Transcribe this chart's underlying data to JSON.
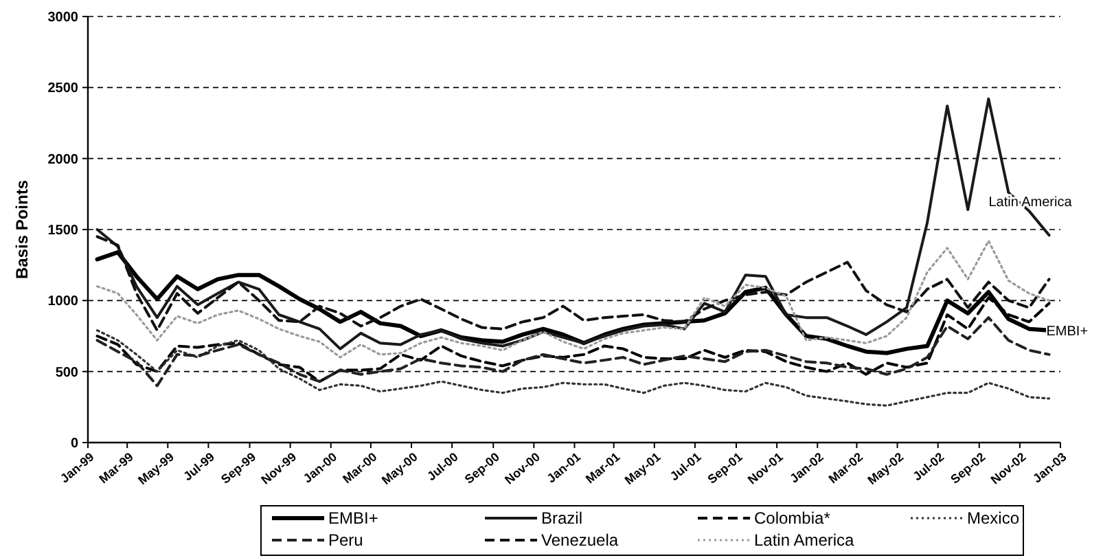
{
  "chart_data": {
    "type": "line",
    "ylabel": "Basis Points",
    "x": [
      "1999-01-15",
      "1999-02-15",
      "1999-03-15",
      "1999-04-15",
      "1999-05-15",
      "1999-06-15",
      "1999-07-15",
      "1999-08-15",
      "1999-09-15",
      "1999-10-15",
      "1999-11-15",
      "1999-12-15",
      "2000-01-15",
      "2000-02-15",
      "2000-03-15",
      "2000-04-15",
      "2000-05-15",
      "2000-06-15",
      "2000-07-15",
      "2000-08-15",
      "2000-09-15",
      "2000-10-15",
      "2000-11-15",
      "2000-12-15",
      "2001-01-15",
      "2001-02-15",
      "2001-03-15",
      "2001-04-15",
      "2001-05-15",
      "2001-06-15",
      "2001-07-15",
      "2001-08-15",
      "2001-09-15",
      "2001-10-15",
      "2001-11-15",
      "2001-12-15",
      "2002-01-15",
      "2002-02-15",
      "2002-03-15",
      "2002-04-15",
      "2002-05-15",
      "2002-06-15",
      "2002-07-15",
      "2002-08-15",
      "2002-09-15",
      "2002-10-15",
      "2002-11-15",
      "2002-12-15"
    ],
    "series": [
      {
        "name": "EMBI+",
        "color": "#000000",
        "line_style": "solid",
        "values": [
          1290,
          1340,
          1170,
          1010,
          1170,
          1080,
          1150,
          1180,
          1180,
          1100,
          1010,
          940,
          850,
          920,
          840,
          820,
          750,
          790,
          740,
          720,
          710,
          760,
          800,
          760,
          700,
          760,
          800,
          830,
          840,
          850,
          860,
          910,
          1060,
          1090,
          900,
          750,
          730,
          680,
          640,
          630,
          660,
          680,
          1000,
          910,
          1060,
          870,
          800,
          790
        ]
      },
      {
        "name": "Brazil",
        "color": "#1a1a1a",
        "line_style": "solid",
        "values": [
          1500,
          1380,
          1100,
          880,
          1100,
          970,
          1050,
          1130,
          1080,
          900,
          850,
          800,
          660,
          770,
          700,
          690,
          760,
          790,
          730,
          700,
          680,
          720,
          780,
          740,
          700,
          750,
          790,
          820,
          830,
          800,
          980,
          920,
          1180,
          1170,
          900,
          880,
          880,
          820,
          760,
          850,
          950,
          1550,
          2370,
          1640,
          2420,
          1760,
          1630,
          1460
        ]
      },
      {
        "name": "Colombia*",
        "color": "#000000",
        "line_style": "dashed",
        "values": [
          750,
          690,
          550,
          500,
          680,
          670,
          690,
          700,
          620,
          550,
          530,
          430,
          510,
          510,
          520,
          620,
          580,
          680,
          610,
          570,
          540,
          580,
          610,
          600,
          620,
          680,
          660,
          600,
          590,
          590,
          650,
          600,
          650,
          640,
          570,
          530,
          500,
          560,
          480,
          560,
          530,
          560,
          900,
          800,
          1020,
          900,
          850,
          980
        ]
      },
      {
        "name": "Mexico",
        "color": "#333333",
        "line_style": "dotted",
        "values": [
          790,
          720,
          620,
          500,
          650,
          600,
          680,
          720,
          650,
          520,
          450,
          370,
          410,
          400,
          360,
          380,
          400,
          430,
          400,
          370,
          350,
          380,
          390,
          420,
          410,
          410,
          380,
          350,
          400,
          420,
          400,
          370,
          360,
          420,
          390,
          330,
          310,
          290,
          270,
          260,
          290,
          320,
          350,
          350,
          420,
          380,
          320,
          310
        ]
      },
      {
        "name": "Peru",
        "color": "#222222",
        "line_style": "dashed",
        "values": [
          720,
          640,
          570,
          400,
          620,
          610,
          650,
          690,
          620,
          560,
          480,
          430,
          510,
          480,
          500,
          520,
          590,
          560,
          540,
          530,
          500,
          580,
          620,
          590,
          560,
          580,
          600,
          550,
          580,
          610,
          590,
          570,
          640,
          650,
          610,
          570,
          560,
          530,
          520,
          480,
          520,
          600,
          820,
          730,
          880,
          720,
          650,
          620
        ]
      },
      {
        "name": "Venezuela",
        "color": "#111111",
        "line_style": "dashed",
        "values": [
          1450,
          1390,
          1050,
          790,
          1050,
          910,
          1020,
          1130,
          1000,
          860,
          850,
          960,
          910,
          820,
          880,
          960,
          1010,
          940,
          870,
          810,
          800,
          850,
          880,
          960,
          860,
          880,
          890,
          900,
          860,
          850,
          940,
          1000,
          1040,
          1060,
          1040,
          1130,
          1200,
          1270,
          1070,
          970,
          920,
          1080,
          1150,
          950,
          1130,
          1000,
          950,
          1150
        ]
      },
      {
        "name": "Latin America",
        "color": "#9a9a9a",
        "line_style": "dotted",
        "values": [
          1100,
          1050,
          900,
          720,
          890,
          840,
          900,
          930,
          870,
          800,
          750,
          710,
          600,
          690,
          620,
          630,
          700,
          740,
          700,
          680,
          650,
          720,
          780,
          710,
          660,
          730,
          770,
          790,
          810,
          800,
          1020,
          960,
          1110,
          1090,
          1030,
          720,
          740,
          720,
          700,
          750,
          880,
          1200,
          1370,
          1150,
          1420,
          1140,
          1050,
          1000
        ]
      }
    ],
    "xlim": [
      "1999-01",
      "2003-01"
    ],
    "xticks": [
      {
        "value": "1999-01",
        "label": "Jan-99"
      },
      {
        "value": "1999-03",
        "label": "Mar-99"
      },
      {
        "value": "1999-05",
        "label": "May-99"
      },
      {
        "value": "1999-07",
        "label": "Jul-99"
      },
      {
        "value": "1999-09",
        "label": "Sep-99"
      },
      {
        "value": "1999-11",
        "label": "Nov-99"
      },
      {
        "value": "2000-01",
        "label": "Jan-00"
      },
      {
        "value": "2000-03",
        "label": "Mar-00"
      },
      {
        "value": "2000-05",
        "label": "May-00"
      },
      {
        "value": "2000-07",
        "label": "Jul-00"
      },
      {
        "value": "2000-09",
        "label": "Sep-00"
      },
      {
        "value": "2000-11",
        "label": "Nov-00"
      },
      {
        "value": "2001-01",
        "label": "Jan-01"
      },
      {
        "value": "2001-03",
        "label": "Mar-01"
      },
      {
        "value": "2001-05",
        "label": "May-01"
      },
      {
        "value": "2001-07",
        "label": "Jul-01"
      },
      {
        "value": "2001-09",
        "label": "Sep-01"
      },
      {
        "value": "2001-11",
        "label": "Nov-01"
      },
      {
        "value": "2002-01",
        "label": "Jan-02"
      },
      {
        "value": "2002-03",
        "label": "Mar-02"
      },
      {
        "value": "2002-05",
        "label": "May-02"
      },
      {
        "value": "2002-07",
        "label": "Jul-02"
      },
      {
        "value": "2002-09",
        "label": "Sep-02"
      },
      {
        "value": "2002-11",
        "label": "Nov-02"
      },
      {
        "value": "2003-01",
        "label": "Jan-03"
      }
    ],
    "ylim": [
      0,
      3000
    ],
    "yticks": [
      0,
      500,
      1000,
      1500,
      2000,
      2500,
      3000
    ],
    "grid": "y",
    "legend": "bottom",
    "marker": "none",
    "annotations": [
      "Latin America",
      {
        "text": "EMBI+",
        "x": "2002-12-15",
        "y": 790
      }
    ]
  }
}
